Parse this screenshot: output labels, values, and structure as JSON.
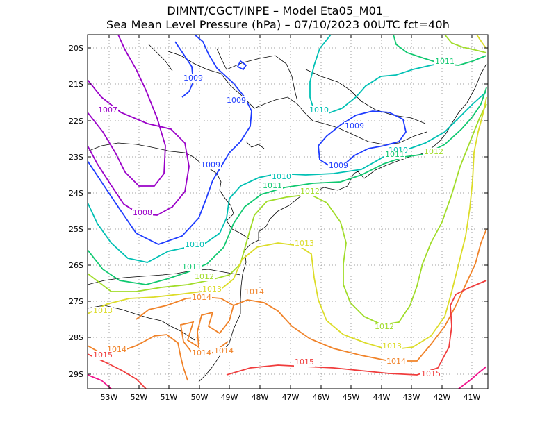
{
  "title_line1": "DIMNT/CGCT/INPE –  Model Eta05_M01_",
  "title_line2": "Sea Mean Level Pressure (hPa) – 07/10/2023 00UTC fct=40h",
  "lon_ticks": [
    "53W",
    "52W",
    "51W",
    "50W",
    "49W",
    "48W",
    "47W",
    "46W",
    "45W",
    "44W",
    "43W",
    "42W",
    "41W"
  ],
  "lat_ticks": [
    "20S",
    "21S",
    "22S",
    "23S",
    "24S",
    "25S",
    "26S",
    "27S",
    "28S",
    "29S"
  ],
  "contour_labels": [
    {
      "text": "1007",
      "level": 1007
    },
    {
      "text": "1008",
      "level": 1008
    },
    {
      "text": "1009",
      "level": 1009
    },
    {
      "text": "1009",
      "level": 1009
    },
    {
      "text": "1009",
      "level": 1009
    },
    {
      "text": "1009",
      "level": 1009
    },
    {
      "text": "1009",
      "level": 1009
    },
    {
      "text": "1010",
      "level": 1010
    },
    {
      "text": "1010",
      "level": 1010
    },
    {
      "text": "1010",
      "level": 1010
    },
    {
      "text": "1010",
      "level": 1010
    },
    {
      "text": "1011",
      "level": 1011
    },
    {
      "text": "1011",
      "level": 1011
    },
    {
      "text": "1011",
      "level": 1011
    },
    {
      "text": "1011",
      "level": 1011
    },
    {
      "text": "1012",
      "level": 1012
    },
    {
      "text": "1012",
      "level": 1012
    },
    {
      "text": "1012",
      "level": 1012
    },
    {
      "text": "1012",
      "level": 1012
    },
    {
      "text": "1013",
      "level": 1013
    },
    {
      "text": "1013",
      "level": 1013
    },
    {
      "text": "1013",
      "level": 1013
    },
    {
      "text": "1013",
      "level": 1013
    },
    {
      "text": "1014",
      "level": 1014
    },
    {
      "text": "1014",
      "level": 1014
    },
    {
      "text": "1014",
      "level": 1014
    },
    {
      "text": "1014",
      "level": 1014
    },
    {
      "text": "1014",
      "level": 1014
    },
    {
      "text": "1014",
      "level": 1014
    },
    {
      "text": "1015",
      "level": 1015
    },
    {
      "text": "1015",
      "level": 1015
    },
    {
      "text": "1015",
      "level": 1015
    }
  ],
  "level_colors": {
    "1007": "#9a00c8",
    "1008": "#9a00c8",
    "1009": "#1e3cff",
    "1010": "#00c0b4",
    "1011": "#10c870",
    "1012": "#a0dc28",
    "1013": "#dcdc28",
    "1014": "#f08228",
    "1015": "#f03c3c",
    "1016": "#f0148c"
  }
}
